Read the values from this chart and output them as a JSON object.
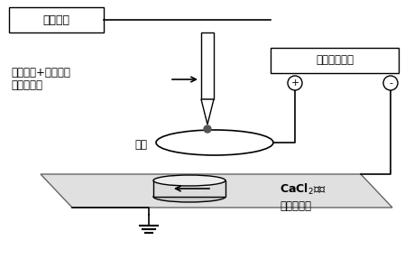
{
  "bg_color": "#ffffff",
  "line_color": "#000000",
  "syringe_pump_label": "注射器泵",
  "raw_material_line1": "海藻酸钠+生长因子",
  "raw_material_line2": "（原料液）",
  "iron_ring_label": "铁环",
  "power_supply_label": "高压直流电源",
  "cacl2_label": "CaCl$_2$溶液",
  "gel_bath_label": "（凝胶浴）",
  "plus_label": "+",
  "minus_label": "-"
}
